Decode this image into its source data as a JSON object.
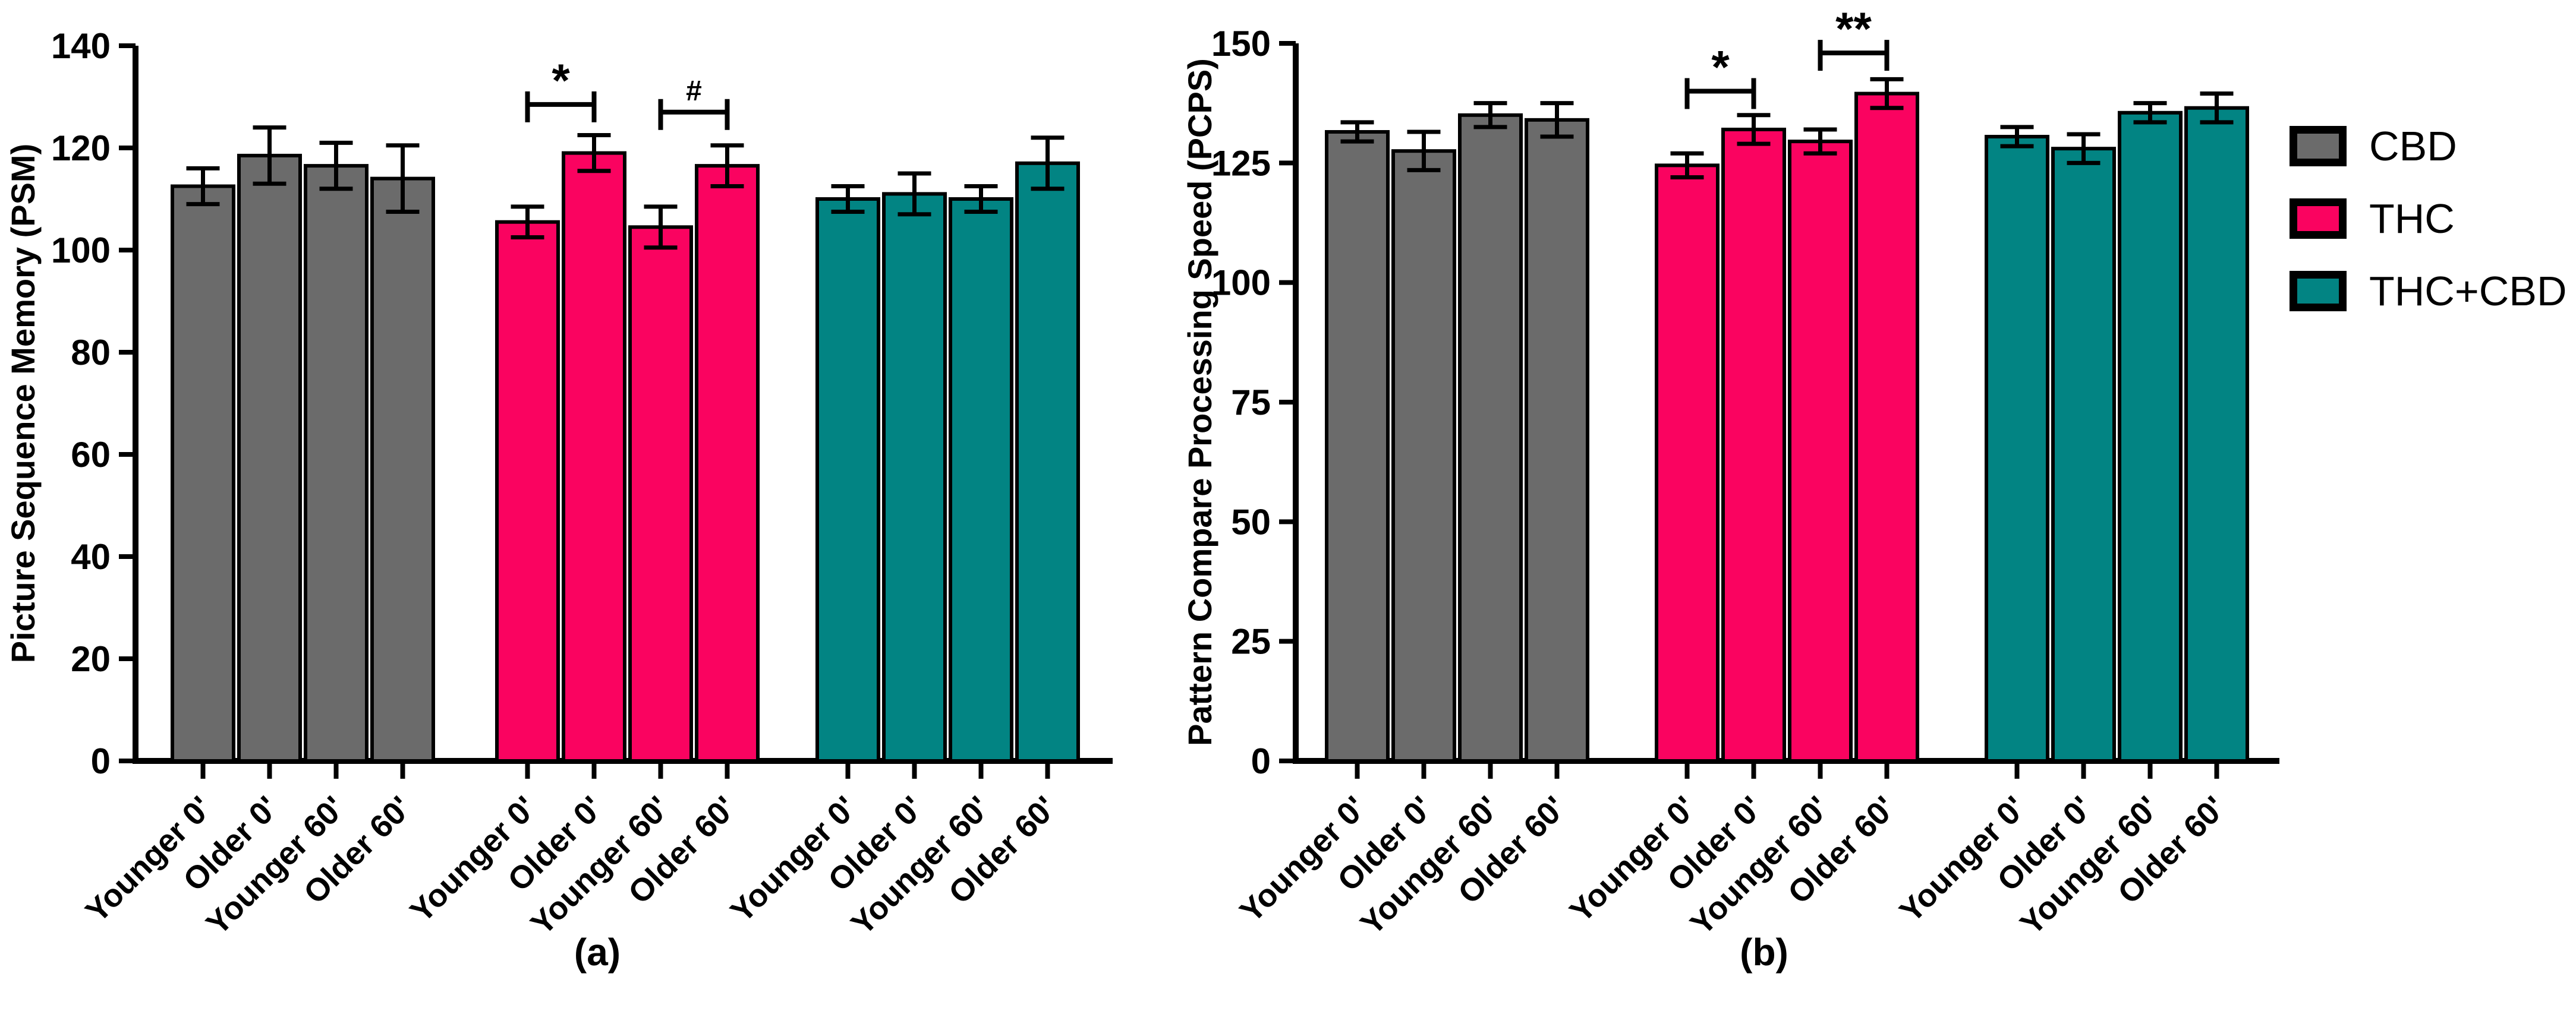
{
  "page": {
    "background": "#FFFFFF",
    "axis_color": "#000000"
  },
  "legend": {
    "items": [
      {
        "label": "CBD",
        "color": "#6B6B6B"
      },
      {
        "label": "THC",
        "color": "#FA0360"
      },
      {
        "label": "THC+CBD",
        "color": "#028483"
      }
    ]
  },
  "chart_data": [
    {
      "id": "a",
      "type": "bar",
      "caption": "(a)",
      "ylabel": "Picture Sequence Memory (PSM)",
      "xlabel": "",
      "ylim": [
        0,
        140
      ],
      "yticks": [
        0,
        20,
        40,
        60,
        80,
        100,
        120,
        140
      ],
      "grid": false,
      "legend_position": "right-of-figure",
      "categories": [
        "Younger 0'",
        "Older 0'",
        "Younger 60'",
        "Older 60'"
      ],
      "groups": [
        {
          "name": "CBD",
          "color": "#6B6B6B",
          "values": [
            112.5,
            118.5,
            116.5,
            114
          ],
          "errors": [
            3.5,
            5.5,
            4.5,
            6.5
          ]
        },
        {
          "name": "THC",
          "color": "#FA0360",
          "values": [
            105.5,
            119,
            104.5,
            116.5
          ],
          "errors": [
            3,
            3.5,
            4,
            4
          ]
        },
        {
          "name": "THC+CBD",
          "color": "#028483",
          "values": [
            110,
            111,
            110,
            117
          ],
          "errors": [
            2.5,
            4,
            2.5,
            5
          ]
        }
      ],
      "significance": [
        {
          "group": "THC",
          "from": 0,
          "to": 1,
          "symbol": "*",
          "y": 128.5
        },
        {
          "group": "THC",
          "from": 2,
          "to": 3,
          "symbol": "#",
          "y": 127
        }
      ]
    },
    {
      "id": "b",
      "type": "bar",
      "caption": "(b)",
      "ylabel": "Pattern Compare Processing Speed (PCPS)",
      "xlabel": "",
      "ylim": [
        0,
        150
      ],
      "yticks": [
        0,
        25,
        50,
        75,
        100,
        125,
        150
      ],
      "grid": false,
      "legend_position": "right-of-figure",
      "categories": [
        "Younger 0'",
        "Older 0'",
        "Younger 60'",
        "Older 60'"
      ],
      "groups": [
        {
          "name": "CBD",
          "color": "#6B6B6B",
          "values": [
            131.5,
            127.5,
            135,
            134
          ],
          "errors": [
            2,
            4,
            2.5,
            3.5
          ]
        },
        {
          "name": "THC",
          "color": "#FA0360",
          "values": [
            124.5,
            132,
            129.5,
            139.5
          ],
          "errors": [
            2.5,
            3,
            2.5,
            3
          ]
        },
        {
          "name": "THC+CBD",
          "color": "#028483",
          "values": [
            130.5,
            128,
            135.5,
            136.5
          ],
          "errors": [
            2,
            3,
            2,
            3
          ]
        }
      ],
      "significance": [
        {
          "group": "THC",
          "from": 0,
          "to": 1,
          "symbol": "*",
          "y": 140
        },
        {
          "group": "THC",
          "from": 2,
          "to": 3,
          "symbol": "**",
          "y": 148
        }
      ]
    }
  ]
}
